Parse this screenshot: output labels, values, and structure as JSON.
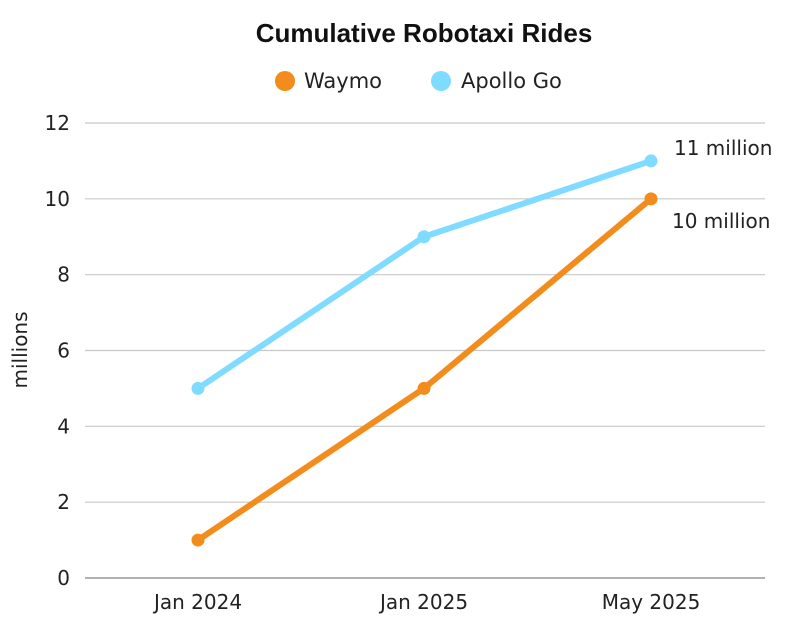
{
  "chart_data": {
    "type": "line",
    "title": "Cumulative Robotaxi Rides",
    "ylabel": "millions",
    "xlabel": "",
    "categories": [
      "Jan 2024",
      "Jan 2025",
      "May 2025"
    ],
    "ylim": [
      0,
      12
    ],
    "yticks": [
      "0",
      "2",
      "4",
      "6",
      "8",
      "10",
      "12"
    ],
    "grid": true,
    "legend_position": "top-center",
    "series": [
      {
        "name": "Waymo",
        "values": [
          1,
          5,
          10
        ],
        "color": "#F28C1C",
        "end_label": "10 million"
      },
      {
        "name": "Apollo Go",
        "values": [
          5,
          9,
          11
        ],
        "color": "#7FDBFF",
        "end_label": "11 million"
      }
    ]
  }
}
